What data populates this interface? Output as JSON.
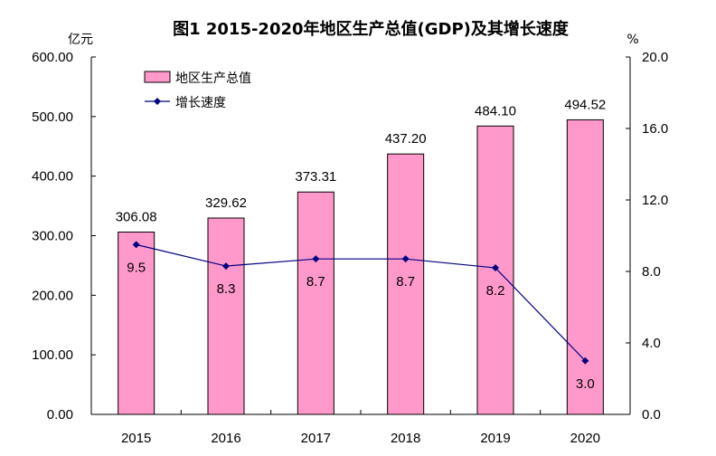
{
  "chart_data": {
    "type": "bar+line",
    "title": "图1  2015-2020年地区生产总值(GDP)及其增长速度",
    "categories": [
      "2015",
      "2016",
      "2017",
      "2018",
      "2019",
      "2020"
    ],
    "series": [
      {
        "name": "地区生产总值",
        "type": "bar",
        "axis": "left",
        "values": [
          306.08,
          329.62,
          373.31,
          437.2,
          484.1,
          494.52
        ],
        "labels": [
          "306.08",
          "329.62",
          "373.31",
          "437.20",
          "484.10",
          "494.52"
        ],
        "color": "#FF99CC"
      },
      {
        "name": "增长速度",
        "type": "line",
        "axis": "right",
        "values": [
          9.5,
          8.3,
          8.7,
          8.7,
          8.2,
          3.0
        ],
        "labels": [
          "9.5",
          "8.3",
          "8.7",
          "8.7",
          "8.2",
          "3.0"
        ],
        "color": "#000080"
      }
    ],
    "left_axis": {
      "unit": "亿元",
      "ylim": [
        0,
        600
      ],
      "ticks": [
        "0.00",
        "100.00",
        "200.00",
        "300.00",
        "400.00",
        "500.00",
        "600.00"
      ]
    },
    "right_axis": {
      "unit": "%",
      "ylim": [
        0,
        20
      ],
      "ticks": [
        "0.0",
        "4.0",
        "8.0",
        "12.0",
        "16.0",
        "20.0"
      ]
    },
    "legend_position": "top-left",
    "grid": false
  }
}
